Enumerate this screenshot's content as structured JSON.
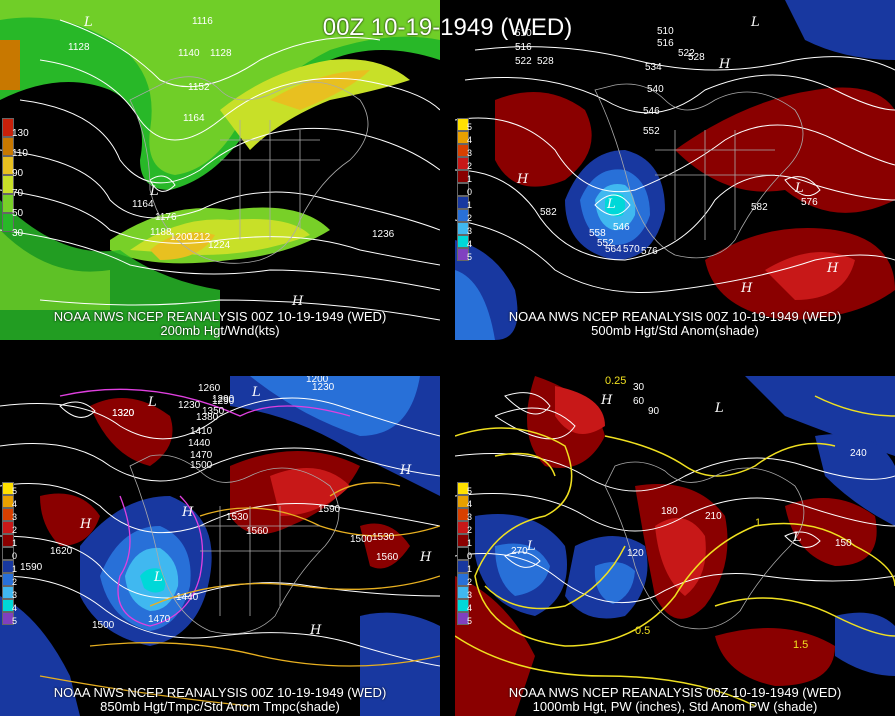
{
  "title": "00Z 10-19-1949 (WED)",
  "panels": [
    {
      "caption_line1": "NOAA NWS NCEP REANALYSIS 00Z 10-19-1949 (WED)",
      "caption_line2": "200mb Hgt/Wnd(kts)",
      "legend": [
        "130",
        "110",
        "90",
        "70",
        "50",
        "30"
      ],
      "legend_colors": [
        "#c8200a",
        "#c87800",
        "#e8c020",
        "#c8e028",
        "#78d028",
        "#28b828"
      ],
      "contour_labels": [
        "1116",
        "1128",
        "1140",
        "1128",
        "1152",
        "1164",
        "1176",
        "1188",
        "1200",
        "1212",
        "1224",
        "1236",
        "1164",
        "1128"
      ]
    },
    {
      "caption_line1": "NOAA NWS NCEP REANALYSIS 00Z 10-19-1949 (WED)",
      "caption_line2": "500mb Hgt/Std Anom(shade)",
      "legend": [
        "5",
        "4",
        "3",
        "2",
        "1",
        "0",
        "1",
        "2",
        "3",
        "4",
        "5"
      ],
      "legend_colors": [
        "#ffe000",
        "#e8a000",
        "#d84000",
        "#c81818",
        "#8a0000",
        "#000000",
        "#1838a0",
        "#2870d8",
        "#40b8f0",
        "#00d8d8",
        "#8040c0"
      ],
      "contour_labels": [
        "510",
        "516",
        "522",
        "528",
        "510",
        "516",
        "522",
        "528",
        "534",
        "540",
        "546",
        "552",
        "582",
        "582",
        "576",
        "558",
        "552",
        "564",
        "570",
        "576",
        "546"
      ]
    },
    {
      "caption_line1": "NOAA NWS NCEP REANALYSIS 00Z 10-19-1949 (WED)",
      "caption_line2": "850mb Hgt/Tmpc/Std Anom Tmpc(shade)",
      "legend": [
        "5",
        "4",
        "3",
        "2",
        "1",
        "0",
        "1",
        "2",
        "3",
        "4",
        "5"
      ],
      "legend_colors": [
        "#ffe000",
        "#e8a000",
        "#d84000",
        "#c81818",
        "#8a0000",
        "#000000",
        "#1838a0",
        "#2870d8",
        "#40b8f0",
        "#00d8d8",
        "#8040c0"
      ],
      "contour_labels": [
        "1350",
        "1230",
        "1260",
        "1290",
        "1320",
        "1350",
        "1380",
        "1410",
        "1440",
        "1470",
        "1500",
        "1530",
        "1560",
        "1590",
        "1620",
        "1500",
        "1530",
        "1560",
        "1440",
        "1470",
        "1500",
        "1590",
        "1200",
        "1230",
        "1290",
        "1320"
      ]
    },
    {
      "caption_line1": "NOAA NWS NCEP REANALYSIS 00Z 10-19-1949 (WED)",
      "caption_line2": "1000mb Hgt, PW (inches), Std Anom PW (shade)",
      "legend": [
        "5",
        "4",
        "3",
        "2",
        "1",
        "0",
        "1",
        "2",
        "3",
        "4",
        "5"
      ],
      "legend_colors": [
        "#ffe000",
        "#e8a000",
        "#d84000",
        "#c81818",
        "#8a0000",
        "#000000",
        "#1838a0",
        "#2870d8",
        "#40b8f0",
        "#00d8d8",
        "#8040c0"
      ],
      "contour_labels": [
        "30",
        "60",
        "90",
        "120",
        "150",
        "180",
        "210",
        "240",
        "270",
        "0.25",
        "0.5",
        "1",
        "1.5"
      ]
    }
  ]
}
